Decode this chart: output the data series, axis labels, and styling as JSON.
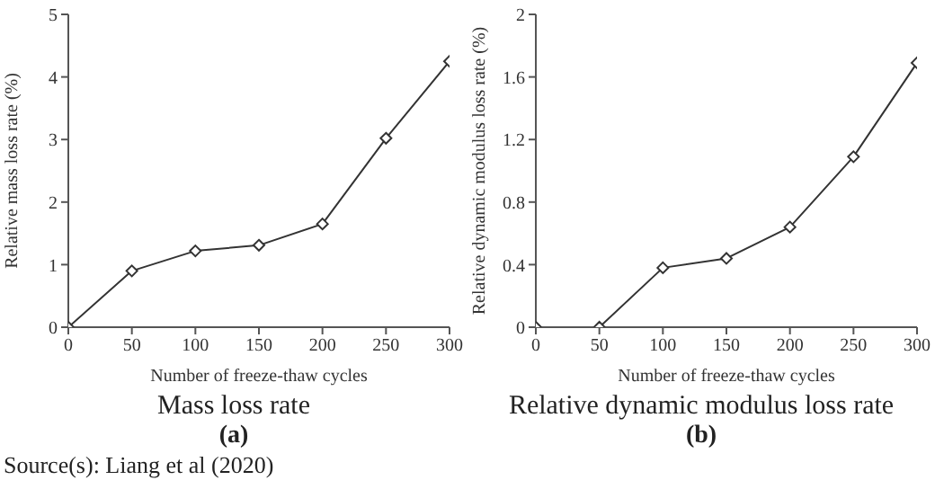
{
  "chart_data": [
    {
      "type": "line",
      "title": "Mass loss rate",
      "subtitle": "(a)",
      "xlabel": "Number of freeze-thaw cycles",
      "ylabel": "Relative mass loss rate (%)",
      "x": [
        0,
        50,
        100,
        150,
        200,
        250,
        300
      ],
      "series": [
        {
          "color": "#333333",
          "values": [
            0,
            0.9,
            1.22,
            1.31,
            1.65,
            3.02,
            4.25
          ]
        }
      ],
      "xlim": [
        0,
        300
      ],
      "xticks": [
        0,
        50,
        100,
        150,
        200,
        250,
        300
      ],
      "ylim": [
        0,
        5
      ],
      "yticks": [
        0,
        1,
        2,
        3,
        4,
        5
      ],
      "marker": "diamond",
      "line_style": "solid",
      "grid": false,
      "legend": false,
      "annotations": [
        "Source(s): Liang et al (2020)"
      ]
    },
    {
      "type": "line",
      "title": "Relative dynamic modulus loss rate",
      "subtitle": "(b)",
      "xlabel": "Number of freeze-thaw cycles",
      "ylabel": "Relative dynamic modulus loss rate (%)",
      "x": [
        0,
        50,
        100,
        150,
        200,
        250,
        300
      ],
      "series": [
        {
          "color": "#333333",
          "values": [
            0,
            0,
            0.38,
            0.44,
            0.64,
            1.09,
            1.69
          ]
        }
      ],
      "xlim": [
        0,
        300
      ],
      "xticks": [
        0,
        50,
        100,
        150,
        200,
        250,
        300
      ],
      "ylim": [
        0,
        2
      ],
      "yticks": [
        0,
        0.4,
        0.8,
        1.2,
        1.6,
        2
      ],
      "marker": "diamond",
      "line_style": "solid",
      "grid": false,
      "legend": false
    }
  ]
}
